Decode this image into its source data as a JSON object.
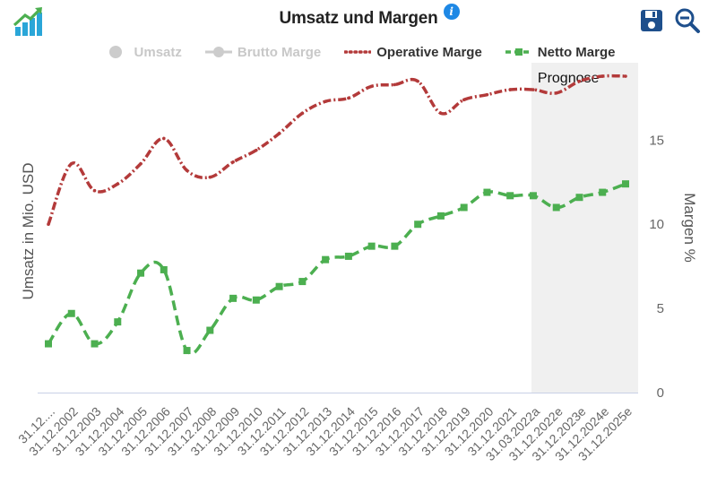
{
  "header": {
    "title": "Umsatz und Margen",
    "logo_icon": "growth-chart-icon",
    "info_icon": "info-icon",
    "info_symbol": "i",
    "save_icon": "save-icon",
    "zoom_out_icon": "zoom-out-icon"
  },
  "legend": [
    {
      "label": "Umsatz",
      "state": "hidden",
      "color": "#cccccc",
      "marker": "circle"
    },
    {
      "label": "Brutto Marge",
      "state": "hidden",
      "color": "#cccccc",
      "marker": "circle-line"
    },
    {
      "label": "Operative Marge",
      "state": "visible",
      "color": "#b33a3a",
      "marker": "dotted-line"
    },
    {
      "label": "Netto Marge",
      "state": "visible",
      "color": "#4caf50",
      "marker": "square-dash-line"
    }
  ],
  "chart_data": {
    "type": "line",
    "left_axis_label": "Umsatz in Mio. USD",
    "right_axis_label": "Margen %",
    "right_axis_ticks": [
      0,
      5,
      10,
      15
    ],
    "ylim": [
      0,
      20
    ],
    "forecast_label": "Prognose",
    "forecast_start_index": 21,
    "categories": [
      "31.12....",
      "31.12.2002",
      "31.12.2003",
      "31.12.2004",
      "31.12.2005",
      "31.12.2006",
      "31.12.2007",
      "31.12.2008",
      "31.12.2009",
      "31.12.2010",
      "31.12.2011",
      "31.12.2012",
      "31.12.2013",
      "31.12.2014",
      "31.12.2015",
      "31.12.2016",
      "31.12.2017",
      "31.12.2018",
      "31.12.2019",
      "31.12.2020",
      "31.12.2021",
      "31.03.2022a",
      "31.12.2022e",
      "31.12.2023e",
      "31.12.2024e",
      "31.12.2025e"
    ],
    "series": [
      {
        "name": "Operative Marge",
        "color": "#b33a3a",
        "style": "dotted",
        "values": [
          10.0,
          13.6,
          12.0,
          12.4,
          13.6,
          15.1,
          13.2,
          12.8,
          13.7,
          14.4,
          15.4,
          16.6,
          17.3,
          17.5,
          18.2,
          18.3,
          18.5,
          16.6,
          17.4,
          17.7,
          18.0,
          18.0,
          17.8,
          18.5,
          18.8,
          18.8
        ]
      },
      {
        "name": "Netto Marge",
        "color": "#4caf50",
        "style": "dashed-square",
        "values": [
          2.9,
          4.7,
          2.9,
          4.2,
          7.1,
          7.3,
          2.5,
          3.7,
          5.6,
          5.5,
          6.3,
          6.6,
          7.9,
          8.1,
          8.7,
          8.7,
          10.0,
          10.5,
          11.0,
          11.9,
          11.7,
          11.7,
          11.0,
          11.6,
          11.9,
          12.4
        ]
      }
    ]
  }
}
